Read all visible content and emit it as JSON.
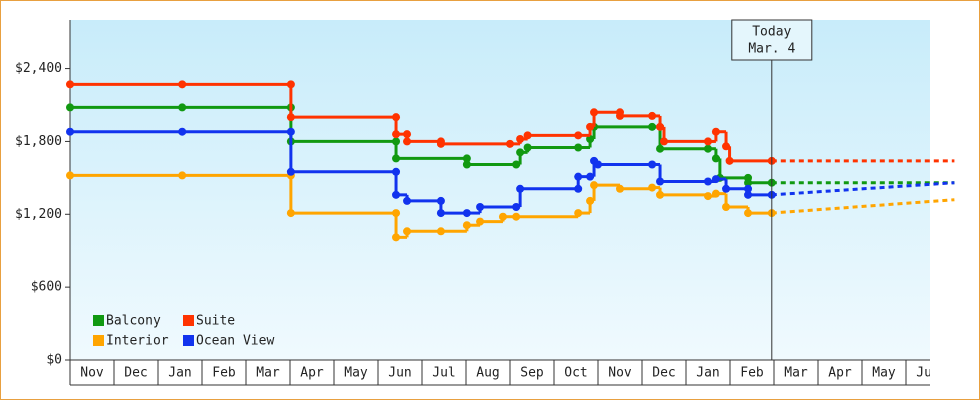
{
  "chart_data": {
    "type": "step",
    "categories": [
      "Nov",
      "Dec",
      "Jan",
      "Feb",
      "Mar",
      "Apr",
      "May",
      "Jun",
      "Jul",
      "Aug",
      "Sep",
      "Oct",
      "Nov",
      "Dec",
      "Jan",
      "Feb",
      "Mar",
      "Apr",
      "May",
      "Jun"
    ],
    "xlim": [
      0,
      20.1
    ],
    "ylim": [
      0,
      2800
    ],
    "yticks": [
      {
        "value": 0,
        "label": "$0"
      },
      {
        "value": 600,
        "label": "$600"
      },
      {
        "value": 1200,
        "label": "$1,200"
      },
      {
        "value": 1800,
        "label": "$1,800"
      },
      {
        "value": 2400,
        "label": "$2,400"
      }
    ],
    "today": {
      "x": 15.95,
      "label": "Today",
      "date": "Mar. 4"
    },
    "series": [
      {
        "name": "Balcony",
        "color": "#119911",
        "x": [
          0,
          2.55,
          5.02,
          5.02,
          7.41,
          7.41,
          9.02,
          9.02,
          10.14,
          10.23,
          10.4,
          11.55,
          11.82,
          11.91,
          13.23,
          13.41,
          14.5,
          14.68,
          14.77,
          15.41,
          15.41,
          15.95
        ],
        "values": [
          2080,
          2080,
          2080,
          1800,
          1800,
          1660,
          1660,
          1610,
          1610,
          1710,
          1750,
          1750,
          1820,
          1920,
          1920,
          1740,
          1740,
          1660,
          1500,
          1500,
          1460,
          1460
        ],
        "projection": 1460
      },
      {
        "name": "Suite",
        "color": "#ff3300",
        "x": [
          0,
          2.55,
          5.02,
          5.02,
          7.41,
          7.41,
          7.66,
          7.66,
          8.43,
          8.43,
          10.0,
          10.23,
          10.4,
          11.55,
          11.82,
          11.91,
          12.5,
          12.5,
          13.23,
          13.41,
          13.5,
          14.5,
          14.68,
          14.91,
          14.99,
          15.95
        ],
        "values": [
          2270,
          2270,
          2270,
          2000,
          2000,
          1860,
          1860,
          1800,
          1800,
          1780,
          1780,
          1820,
          1850,
          1850,
          1920,
          2040,
          2040,
          2010,
          2010,
          1920,
          1800,
          1800,
          1880,
          1760,
          1640,
          1640
        ],
        "projection": 1640
      },
      {
        "name": "Interior",
        "color": "#ffa500",
        "x": [
          0,
          2.55,
          5.02,
          5.02,
          7.41,
          7.41,
          7.66,
          8.43,
          9.02,
          9.32,
          9.84,
          10.14,
          11.55,
          11.82,
          11.91,
          12.5,
          13.23,
          13.41,
          14.5,
          14.68,
          14.91,
          15.41,
          15.95
        ],
        "values": [
          1520,
          1520,
          1520,
          1210,
          1210,
          1010,
          1060,
          1060,
          1110,
          1140,
          1180,
          1180,
          1210,
          1310,
          1440,
          1410,
          1420,
          1360,
          1350,
          1370,
          1260,
          1210,
          1210
        ],
        "projection": 1320
      },
      {
        "name": "Ocean View",
        "color": "#1133ee",
        "x": [
          0,
          2.55,
          5.02,
          5.02,
          7.41,
          7.41,
          7.66,
          8.43,
          8.43,
          9.02,
          9.32,
          10.14,
          10.23,
          11.55,
          11.55,
          11.82,
          11.91,
          12.0,
          13.23,
          13.41,
          14.5,
          14.68,
          14.91,
          15.41,
          15.41,
          15.95
        ],
        "values": [
          1880,
          1880,
          1880,
          1550,
          1550,
          1360,
          1310,
          1310,
          1210,
          1210,
          1260,
          1260,
          1410,
          1410,
          1510,
          1510,
          1640,
          1610,
          1610,
          1470,
          1470,
          1490,
          1410,
          1410,
          1360,
          1360
        ],
        "projection": 1460
      }
    ]
  }
}
